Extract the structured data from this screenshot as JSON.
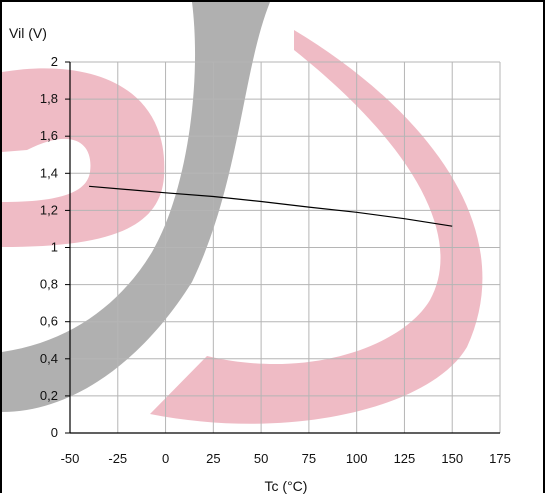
{
  "chart_data": {
    "type": "line",
    "title": "",
    "xlabel": "Tc (°C)",
    "ylabel": "Vil (V)",
    "xlim": [
      -50,
      175
    ],
    "ylim": [
      0,
      2
    ],
    "grid": true,
    "x_ticks": [
      "-50",
      "-25",
      "0",
      "25",
      "50",
      "75",
      "100",
      "125",
      "150",
      "175"
    ],
    "y_ticks": [
      "0",
      "0,2",
      "0,4",
      "0,6",
      "0,8",
      "1",
      "1,2",
      "1,4",
      "1,6",
      "1,8",
      "2"
    ],
    "series": [
      {
        "x": [
          -40,
          0,
          25,
          50,
          75,
          100,
          125,
          150
        ],
        "y": [
          1.33,
          1.295,
          1.275,
          1.248,
          1.218,
          1.19,
          1.155,
          1.115
        ],
        "color": "#000000"
      }
    ]
  },
  "colors": {
    "watermark_pink": "#e8a0ad",
    "watermark_gray": "#9a9a9a",
    "grid": "#b5b5b5"
  }
}
